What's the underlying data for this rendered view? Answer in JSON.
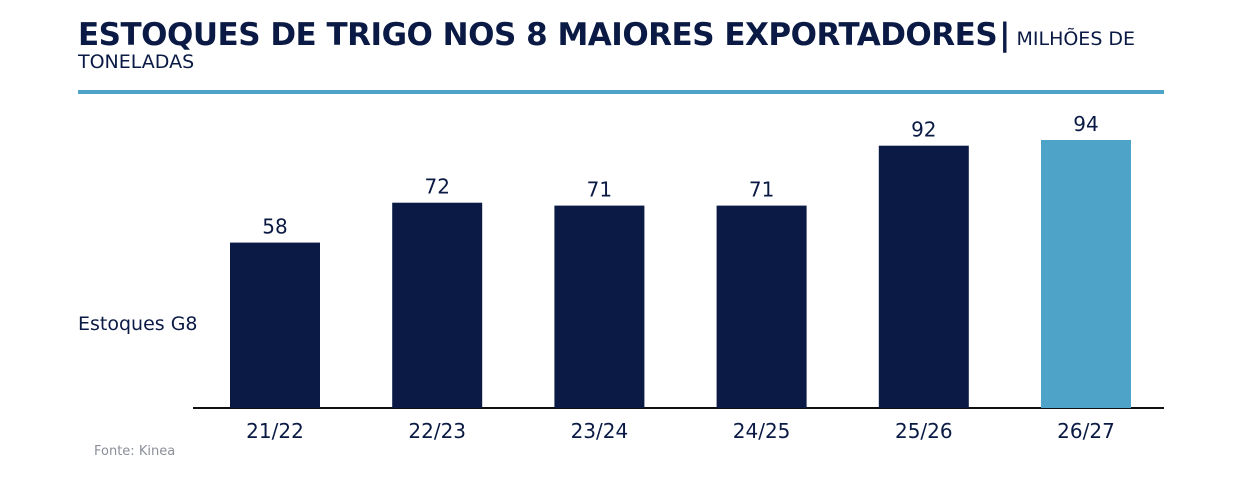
{
  "header": {
    "title": "ESTOQUES DE TRIGO NOS 8 MAIORES EXPORTADORES",
    "separator": "|",
    "unit": "MILHÕES DE TONELADAS"
  },
  "source": "Fonte: Kinea",
  "colors": {
    "primary": "#0a1a44",
    "highlight": "#4ea3c9",
    "source_text": "#8a8f98"
  },
  "chart_data": {
    "type": "bar",
    "title": "ESTOQUES DE TRIGO NOS 8 MAIORES EXPORTADORES | MILHÕES DE TONELADAS",
    "xlabel": "",
    "ylabel": "",
    "ylim": [
      0,
      94
    ],
    "grid": false,
    "categories": [
      "21/22",
      "22/23",
      "23/24",
      "24/25",
      "25/26",
      "26/27"
    ],
    "series": [
      {
        "name": "Estoques G8",
        "values": [
          58,
          72,
          71,
          71,
          92,
          94
        ],
        "colors": [
          "#0a1a44",
          "#0a1a44",
          "#0a1a44",
          "#0a1a44",
          "#0a1a44",
          "#4ea3c9"
        ]
      }
    ]
  }
}
